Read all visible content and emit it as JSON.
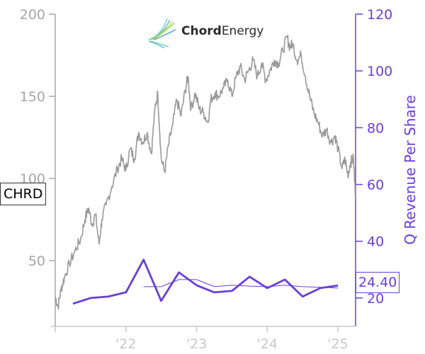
{
  "logo": {
    "brand_bold": "Chord",
    "brand_light": "Energy"
  },
  "ticker": "CHRD",
  "last_value_label": "24.40",
  "chart_data": {
    "type": "line",
    "ylabel_right": "Q Revenue Per Share",
    "x_ticks": [
      "'22",
      "'23",
      "'24",
      "'25"
    ],
    "x_tick_dates": [
      2022.0,
      2023.0,
      2024.0,
      2025.0
    ],
    "xlim": [
      2021.0,
      2025.25
    ],
    "y_left": {
      "lim": [
        10,
        200
      ],
      "ticks": [
        50,
        100,
        150,
        200
      ]
    },
    "y_right": {
      "lim": [
        10,
        120
      ],
      "ticks": [
        20,
        40,
        60,
        80,
        100,
        120
      ]
    },
    "colors": {
      "price": "#999999",
      "revenue": "#6a3fdc",
      "revenue_avg": "#6a3fdc",
      "left_axis": "#a6a6a6",
      "right_axis": "#6a3fdc"
    },
    "series": [
      {
        "axis": "left",
        "style": "price",
        "points": [
          [
            2021.0,
            28
          ],
          [
            2021.04,
            22
          ],
          [
            2021.08,
            32
          ],
          [
            2021.13,
            40
          ],
          [
            2021.2,
            48
          ],
          [
            2021.28,
            56
          ],
          [
            2021.36,
            63
          ],
          [
            2021.42,
            75
          ],
          [
            2021.47,
            82
          ],
          [
            2021.52,
            72
          ],
          [
            2021.57,
            78
          ],
          [
            2021.62,
            60
          ],
          [
            2021.66,
            75
          ],
          [
            2021.72,
            84
          ],
          [
            2021.8,
            95
          ],
          [
            2021.88,
            106
          ],
          [
            2021.94,
            112
          ],
          [
            2022.0,
            105
          ],
          [
            2022.06,
            118
          ],
          [
            2022.12,
            112
          ],
          [
            2022.18,
            128
          ],
          [
            2022.24,
            122
          ],
          [
            2022.3,
            128
          ],
          [
            2022.36,
            115
          ],
          [
            2022.41,
            142
          ],
          [
            2022.45,
            152
          ],
          [
            2022.5,
            112
          ],
          [
            2022.55,
            104
          ],
          [
            2022.6,
            120
          ],
          [
            2022.66,
            132
          ],
          [
            2022.72,
            148
          ],
          [
            2022.78,
            138
          ],
          [
            2022.84,
            154
          ],
          [
            2022.88,
            162
          ],
          [
            2022.92,
            142
          ],
          [
            2022.98,
            152
          ],
          [
            2023.04,
            142
          ],
          [
            2023.1,
            140
          ],
          [
            2023.16,
            134
          ],
          [
            2023.2,
            148
          ],
          [
            2023.26,
            152
          ],
          [
            2023.31,
            150
          ],
          [
            2023.38,
            155
          ],
          [
            2023.44,
            160
          ],
          [
            2023.5,
            150
          ],
          [
            2023.56,
            162
          ],
          [
            2023.62,
            168
          ],
          [
            2023.68,
            160
          ],
          [
            2023.74,
            166
          ],
          [
            2023.8,
            172
          ],
          [
            2023.86,
            162
          ],
          [
            2023.92,
            170
          ],
          [
            2023.98,
            160
          ],
          [
            2024.04,
            166
          ],
          [
            2024.1,
            172
          ],
          [
            2024.16,
            170
          ],
          [
            2024.22,
            178
          ],
          [
            2024.28,
            186
          ],
          [
            2024.32,
            180
          ],
          [
            2024.36,
            182
          ],
          [
            2024.42,
            172
          ],
          [
            2024.48,
            175
          ],
          [
            2024.54,
            162
          ],
          [
            2024.6,
            150
          ],
          [
            2024.66,
            140
          ],
          [
            2024.72,
            134
          ],
          [
            2024.78,
            126
          ],
          [
            2024.84,
            130
          ],
          [
            2024.9,
            122
          ],
          [
            2024.96,
            126
          ],
          [
            2025.0,
            118
          ],
          [
            2025.06,
            106
          ],
          [
            2025.1,
            112
          ],
          [
            2025.14,
            102
          ],
          [
            2025.18,
            110
          ],
          [
            2025.22,
            112
          ],
          [
            2025.25,
            88
          ]
        ]
      },
      {
        "axis": "right",
        "style": "revenue",
        "points": [
          [
            2021.25,
            18.0
          ],
          [
            2021.5,
            20.0
          ],
          [
            2021.75,
            20.5
          ],
          [
            2022.0,
            22.0
          ],
          [
            2022.25,
            33.5
          ],
          [
            2022.5,
            19.0
          ],
          [
            2022.75,
            29.0
          ],
          [
            2023.0,
            24.5
          ],
          [
            2023.25,
            22.0
          ],
          [
            2023.5,
            22.5
          ],
          [
            2023.75,
            27.5
          ],
          [
            2024.0,
            23.5
          ],
          [
            2024.25,
            26.5
          ],
          [
            2024.5,
            20.5
          ],
          [
            2024.75,
            23.5
          ],
          [
            2025.0,
            24.4
          ]
        ]
      },
      {
        "axis": "right",
        "style": "revenue_avg",
        "points": [
          [
            2022.25,
            24.0
          ],
          [
            2022.5,
            24.0
          ],
          [
            2022.75,
            26.5
          ],
          [
            2023.0,
            26.5
          ],
          [
            2023.25,
            24.0
          ],
          [
            2023.5,
            24.5
          ],
          [
            2023.75,
            24.2
          ],
          [
            2024.0,
            24.0
          ],
          [
            2024.25,
            24.5
          ],
          [
            2024.5,
            24.0
          ],
          [
            2024.75,
            23.8
          ],
          [
            2025.0,
            23.5
          ]
        ]
      }
    ]
  }
}
